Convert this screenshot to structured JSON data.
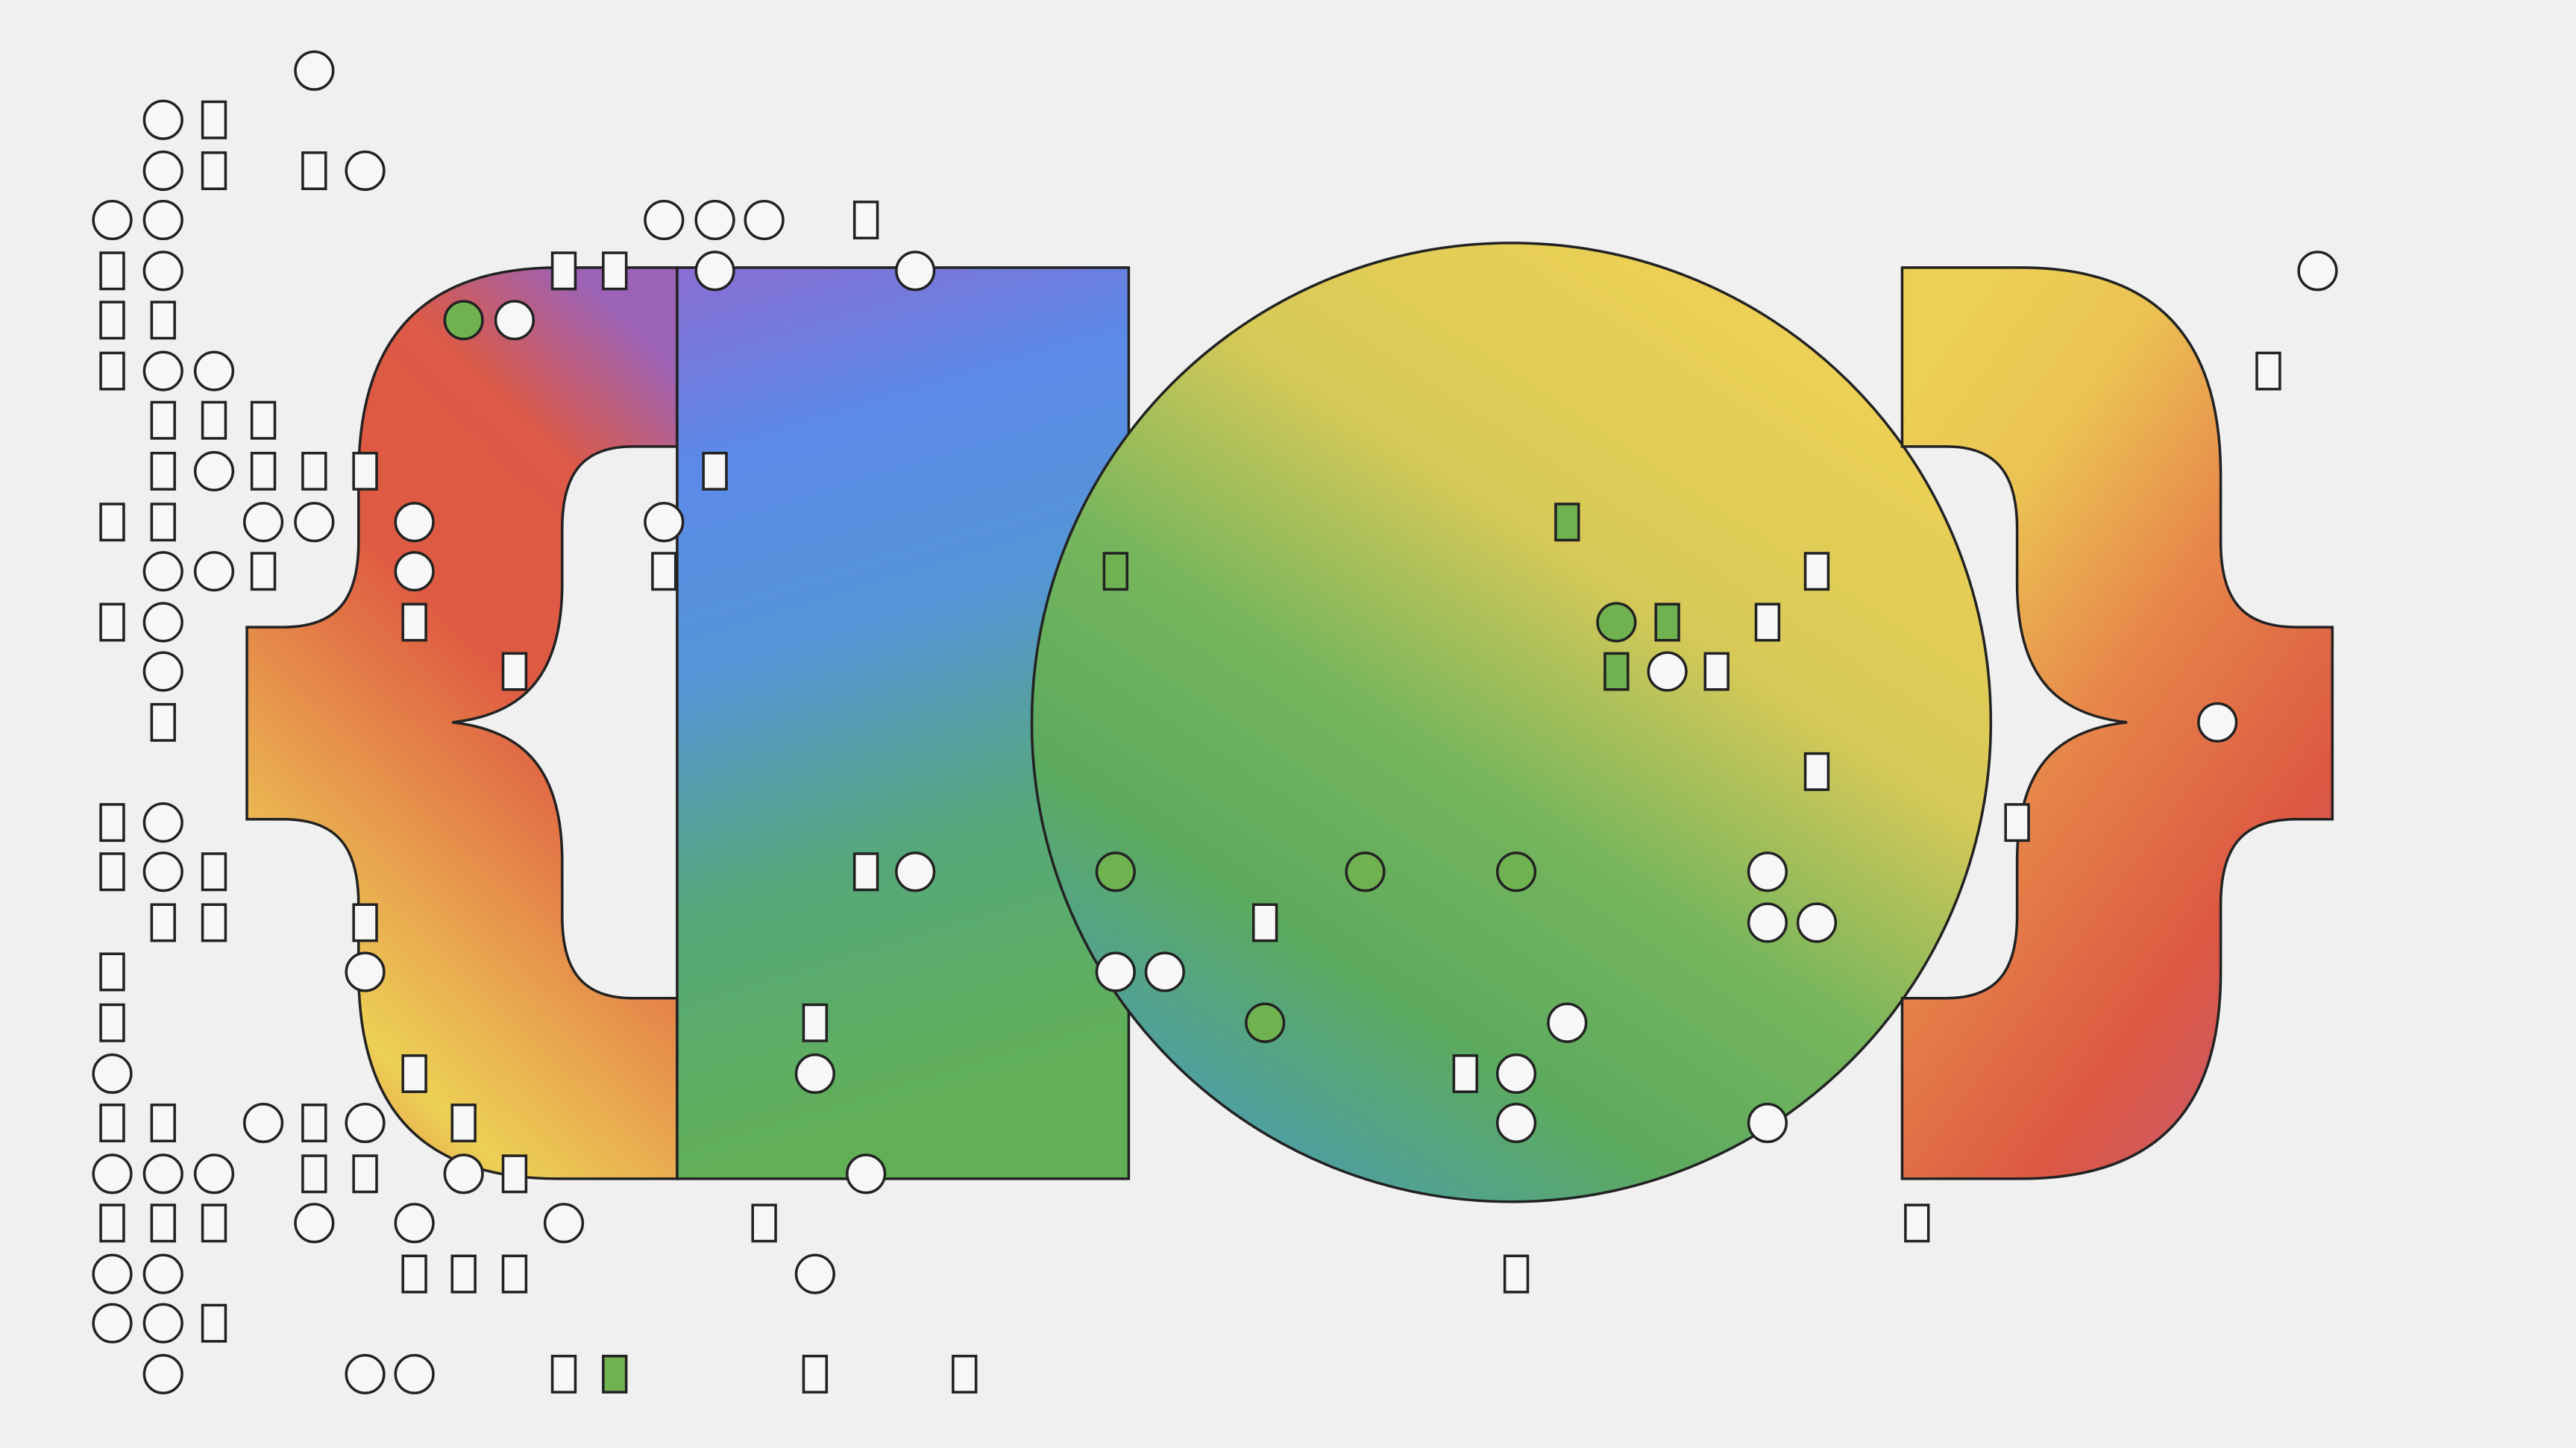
{
  "artwork": {
    "motif": "curly-braces-rectangle-circle",
    "gradient_colors": {
      "red": "#dc5640",
      "orange": "#e8874a",
      "yellow": "#ecd055",
      "blue": "#5b8ae8",
      "purple": "#8a6dd3",
      "green": "#5cad5e",
      "teal": "#4f9da6"
    },
    "marker_fill_plain": "#f7f7f7",
    "marker_fill_green": "#6fb24f",
    "outline_color": "#222222"
  }
}
